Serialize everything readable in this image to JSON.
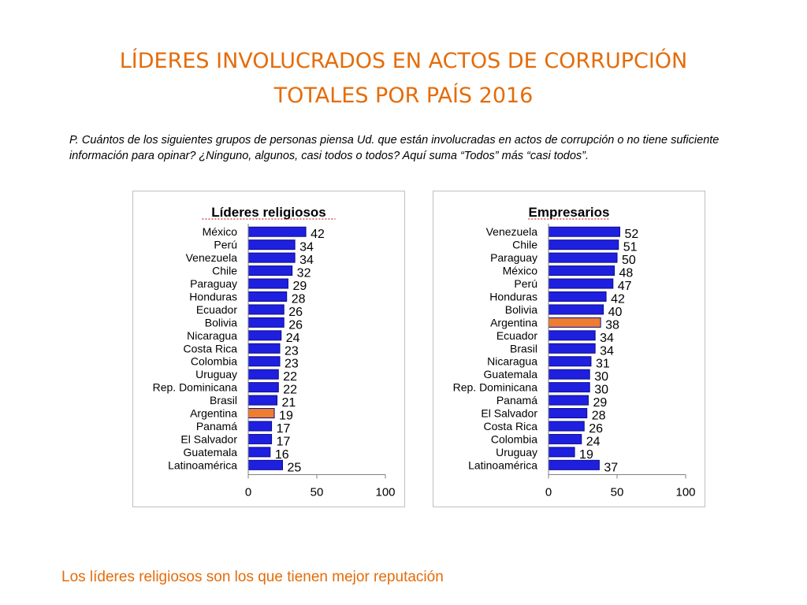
{
  "title": {
    "line1": "LÍDERES INVOLUCRADOS EN ACTOS DE CORRUPCIÓN",
    "line2": "TOTALES POR PAÍS 2016"
  },
  "question": "P. Cuántos de los siguientes grupos de personas piensa Ud. que están involucradas en actos de corrupción o no tiene suficiente información para opinar? ¿Ninguno, algunos, casi todos o todos? Aquí suma “Todos” más “casi todos”.",
  "footer": "Los líderes religiosos son los que tienen mejor reputación",
  "colors": {
    "bar": "#1f1fe0",
    "highlight": "#ed7d31",
    "bar_edge": "#0a0a8a",
    "title": "#e46c0a"
  },
  "chart_data": [
    {
      "type": "bar",
      "orientation": "horizontal",
      "title": "Líderes religiosos",
      "categories": [
        "México",
        "Perú",
        "Venezuela",
        "Chile",
        "Paraguay",
        "Honduras",
        "Ecuador",
        "Bolivia",
        "Nicaragua",
        "Costa Rica",
        "Colombia",
        "Uruguay",
        "Rep. Dominicana",
        "Brasil",
        "Argentina",
        "Panamá",
        "El Salvador",
        "Guatemala",
        "Latinoamérica"
      ],
      "values": [
        42,
        34,
        34,
        32,
        29,
        28,
        26,
        26,
        24,
        23,
        23,
        22,
        22,
        21,
        19,
        17,
        17,
        16,
        25
      ],
      "highlight": "Argentina",
      "xlim": [
        0,
        100
      ],
      "xticks": [
        0,
        50,
        100
      ],
      "grid": false,
      "legend": "none"
    },
    {
      "type": "bar",
      "orientation": "horizontal",
      "title": "Empresarios",
      "categories": [
        "Venezuela",
        "Chile",
        "Paraguay",
        "México",
        "Perú",
        "Honduras",
        "Bolivia",
        "Argentina",
        "Ecuador",
        "Brasil",
        "Nicaragua",
        "Guatemala",
        "Rep. Dominicana",
        "Panamá",
        "El Salvador",
        "Costa Rica",
        "Colombia",
        "Uruguay",
        "Latinoamérica"
      ],
      "values": [
        52,
        51,
        50,
        48,
        47,
        42,
        40,
        38,
        34,
        34,
        31,
        30,
        30,
        29,
        28,
        26,
        24,
        19,
        37
      ],
      "highlight": "Argentina",
      "xlim": [
        0,
        100
      ],
      "xticks": [
        0,
        50,
        100
      ],
      "grid": false,
      "legend": "none"
    }
  ]
}
